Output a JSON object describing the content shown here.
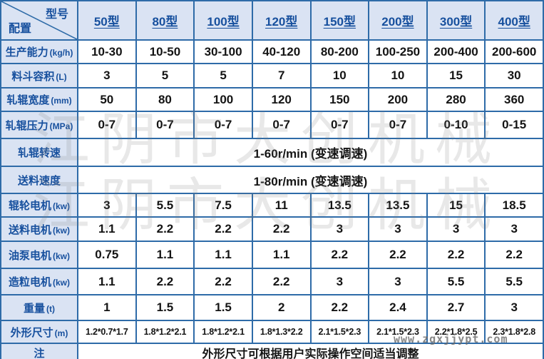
{
  "table": {
    "corner": {
      "top_right": "型号",
      "bottom_left": "配置"
    },
    "models": [
      "50型",
      "80型",
      "100型",
      "120型",
      "150型",
      "200型",
      "300型",
      "400型"
    ],
    "rows": [
      {
        "label": "生产能力",
        "unit": "(kg/h)",
        "values": [
          "10-30",
          "10-50",
          "30-100",
          "40-120",
          "80-200",
          "100-250",
          "200-400",
          "200-600"
        ]
      },
      {
        "label": "料斗容积",
        "unit": "(L)",
        "values": [
          "3",
          "5",
          "5",
          "7",
          "10",
          "10",
          "15",
          "30"
        ]
      },
      {
        "label": "轧辊宽度",
        "unit": "(mm)",
        "values": [
          "50",
          "80",
          "100",
          "120",
          "150",
          "200",
          "280",
          "360"
        ]
      },
      {
        "label": "轧辊压力",
        "unit": "(MPa)",
        "values": [
          "0-7",
          "0-7",
          "0-7",
          "0-7",
          "0-7",
          "0-7",
          "0-10",
          "0-15"
        ]
      },
      {
        "label": "轧辊转速",
        "unit": "",
        "span": "1-60r/min (变速调速)"
      },
      {
        "label": "送料速度",
        "unit": "",
        "span": "1-80r/min (变速调速)"
      },
      {
        "label": "辊轮电机",
        "unit": "(kw)",
        "values": [
          "3",
          "5.5",
          "7.5",
          "11",
          "13.5",
          "13.5",
          "15",
          "18.5"
        ]
      },
      {
        "label": "送料电机",
        "unit": "(kw)",
        "values": [
          "1.1",
          "2.2",
          "2.2",
          "2.2",
          "3",
          "3",
          "3",
          "3"
        ]
      },
      {
        "label": "油泵电机",
        "unit": "(kw)",
        "values": [
          "0.75",
          "1.1",
          "1.1",
          "1.1",
          "2.2",
          "2.2",
          "2.2",
          "2.2"
        ]
      },
      {
        "label": "造粒电机",
        "unit": "(kw)",
        "values": [
          "1.1",
          "2.2",
          "2.2",
          "2.2",
          "3",
          "3",
          "5.5",
          "5.5"
        ]
      },
      {
        "label": "重量",
        "unit": "(t)",
        "values": [
          "1",
          "1.5",
          "1.5",
          "2",
          "2.2",
          "2.4",
          "2.7",
          "3"
        ]
      },
      {
        "label": "外形尺寸",
        "unit": "(m)",
        "small": true,
        "values": [
          "1.2*0.7*1.7",
          "1.8*1.2*2.1",
          "1.8*1.2*2.1",
          "1.8*1.3*2.2",
          "2.1*1.5*2.3",
          "2.1*1.5*2.3",
          "2.2*1.8*2.5",
          "2.3*1.8*2.8"
        ]
      },
      {
        "label": "注",
        "unit": "",
        "note": true,
        "span": "外形尺寸可根据用户实际操作空间适当调整"
      }
    ]
  },
  "watermarks": {
    "company": "江阴市大创机械",
    "site": "www.zgxjjypt.com"
  },
  "colors": {
    "border": "#2e6ba8",
    "header_bg": "#dae3f3",
    "header_text": "#17509e",
    "value_text": "#141414"
  }
}
